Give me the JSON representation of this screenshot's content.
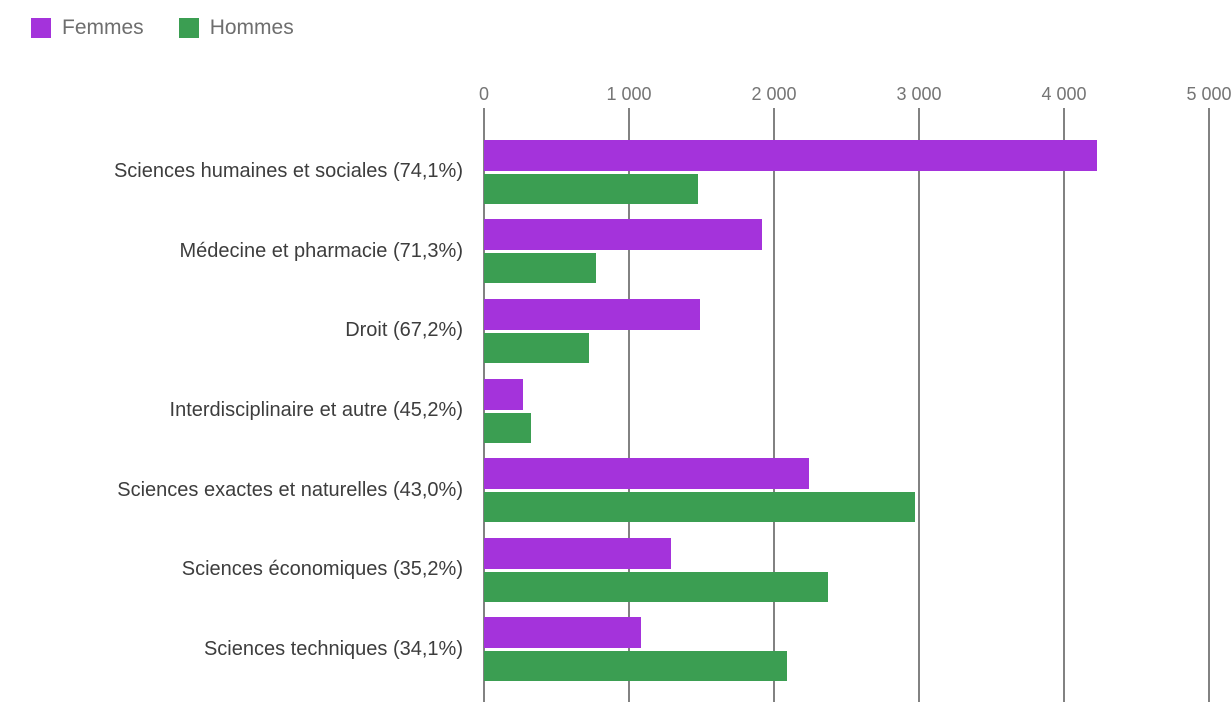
{
  "legend": {
    "items": [
      {
        "label": "Femmes",
        "color": "#A433DB"
      },
      {
        "label": "Hommes",
        "color": "#3B9E52"
      }
    ]
  },
  "chart_data": {
    "type": "bar",
    "orientation": "horizontal",
    "title": "",
    "xlabel": "",
    "ylabel": "",
    "categories": [
      "Sciences humaines et sociales (74,1%)",
      "Médecine et pharmacie (71,3%)",
      "Droit (67,2%)",
      "Interdisciplinaire et autre (45,2%)",
      "Sciences exactes et naturelles (43,0%)",
      "Sciences économiques (35,2%)",
      "Sciences techniques (34,1%)"
    ],
    "series": [
      {
        "name": "Femmes",
        "color": "#A433DB",
        "values": [
          4230,
          1920,
          1490,
          266,
          2240,
          1288,
          1080
        ]
      },
      {
        "name": "Hommes",
        "color": "#3B9E52",
        "values": [
          1478,
          773,
          727,
          323,
          2970,
          2370,
          2090
        ]
      }
    ],
    "xlim": [
      0,
      5000
    ],
    "x_ticks": [
      0,
      1000,
      2000,
      3000,
      4000,
      5000
    ],
    "x_tick_labels": [
      "0",
      "1 000",
      "2 000",
      "3 000",
      "4 000",
      "5 000"
    ],
    "grid": "vertical",
    "legend_position": "top-left",
    "gridline_color": "#828282",
    "tick_label_color": "#757575",
    "category_label_color": "#3d3d3d"
  }
}
